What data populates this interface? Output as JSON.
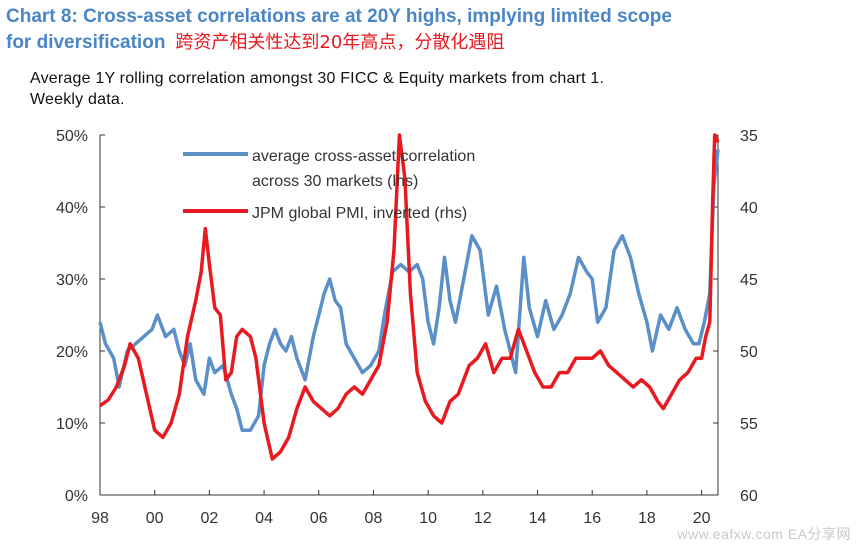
{
  "header": {
    "title_line1": "Chart 8: Cross-asset correlations are at 20Y highs, implying limited scope",
    "title_line2": "for diversification",
    "title_cn": "跨资产相关性达到20年高点，分散化遇阻",
    "subtitle_line1": "Average 1Y rolling correlation amongst 30 FICC & Equity markets from chart 1.",
    "subtitle_line2": "Weekly data."
  },
  "watermark": "www.eafxw.com   EA分享网",
  "chart_data": {
    "type": "line",
    "x_ticks": [
      "98",
      "00",
      "02",
      "04",
      "06",
      "08",
      "10",
      "12",
      "14",
      "16",
      "18",
      "20"
    ],
    "x_range": [
      1998,
      2020.6
    ],
    "y_left": {
      "ticks": [
        "0%",
        "10%",
        "20%",
        "30%",
        "40%",
        "50%"
      ],
      "range": [
        0,
        50
      ]
    },
    "y_right": {
      "ticks": [
        "35",
        "40",
        "45",
        "50",
        "55",
        "60"
      ],
      "range": [
        35,
        60
      ],
      "inverted": true
    },
    "grid": false,
    "legend_position": "top-center",
    "series": [
      {
        "name": "average cross-asset correlation across 30 markets (lhs)",
        "legend_line1": "average cross-asset correlation",
        "legend_line2": "across 30 markets (lhs)",
        "axis": "left",
        "color": "#5b8fc7",
        "points": [
          [
            1998.0,
            24
          ],
          [
            1998.2,
            21
          ],
          [
            1998.5,
            19
          ],
          [
            1998.7,
            15
          ],
          [
            1999.0,
            20
          ],
          [
            1999.3,
            21
          ],
          [
            1999.6,
            22
          ],
          [
            1999.9,
            23
          ],
          [
            2000.1,
            25
          ],
          [
            2000.4,
            22
          ],
          [
            2000.7,
            23
          ],
          [
            2000.9,
            20
          ],
          [
            2001.1,
            18
          ],
          [
            2001.3,
            21
          ],
          [
            2001.5,
            16
          ],
          [
            2001.8,
            14
          ],
          [
            2002.0,
            19
          ],
          [
            2002.2,
            17
          ],
          [
            2002.5,
            18
          ],
          [
            2002.8,
            14
          ],
          [
            2003.0,
            12
          ],
          [
            2003.2,
            9
          ],
          [
            2003.5,
            9
          ],
          [
            2003.8,
            11
          ],
          [
            2004.0,
            18
          ],
          [
            2004.2,
            21
          ],
          [
            2004.4,
            23
          ],
          [
            2004.6,
            21
          ],
          [
            2004.8,
            20
          ],
          [
            2005.0,
            22
          ],
          [
            2005.2,
            19
          ],
          [
            2005.5,
            16
          ],
          [
            2005.8,
            22
          ],
          [
            2006.0,
            25
          ],
          [
            2006.2,
            28
          ],
          [
            2006.4,
            30
          ],
          [
            2006.6,
            27
          ],
          [
            2006.8,
            26
          ],
          [
            2007.0,
            21
          ],
          [
            2007.3,
            19
          ],
          [
            2007.6,
            17
          ],
          [
            2007.9,
            18
          ],
          [
            2008.2,
            20
          ],
          [
            2008.4,
            25
          ],
          [
            2008.7,
            31
          ],
          [
            2009.0,
            32
          ],
          [
            2009.3,
            31
          ],
          [
            2009.6,
            32
          ],
          [
            2009.8,
            30
          ],
          [
            2010.0,
            24
          ],
          [
            2010.2,
            21
          ],
          [
            2010.4,
            26
          ],
          [
            2010.6,
            33
          ],
          [
            2010.8,
            27
          ],
          [
            2011.0,
            24
          ],
          [
            2011.3,
            30
          ],
          [
            2011.6,
            36
          ],
          [
            2011.9,
            34
          ],
          [
            2012.2,
            25
          ],
          [
            2012.5,
            29
          ],
          [
            2012.8,
            23
          ],
          [
            2013.0,
            20
          ],
          [
            2013.2,
            17
          ],
          [
            2013.5,
            33
          ],
          [
            2013.7,
            26
          ],
          [
            2014.0,
            22
          ],
          [
            2014.3,
            27
          ],
          [
            2014.6,
            23
          ],
          [
            2014.9,
            25
          ],
          [
            2015.2,
            28
          ],
          [
            2015.5,
            33
          ],
          [
            2015.8,
            31
          ],
          [
            2016.0,
            30
          ],
          [
            2016.2,
            24
          ],
          [
            2016.5,
            26
          ],
          [
            2016.8,
            34
          ],
          [
            2017.1,
            36
          ],
          [
            2017.4,
            33
          ],
          [
            2017.7,
            28
          ],
          [
            2018.0,
            24
          ],
          [
            2018.2,
            20
          ],
          [
            2018.5,
            25
          ],
          [
            2018.8,
            23
          ],
          [
            2019.1,
            26
          ],
          [
            2019.4,
            23
          ],
          [
            2019.7,
            21
          ],
          [
            2019.9,
            21
          ],
          [
            2020.1,
            24
          ],
          [
            2020.3,
            28
          ],
          [
            2020.45,
            43
          ],
          [
            2020.6,
            48
          ]
        ]
      },
      {
        "name": "JPM global PMI, inverted (rhs)",
        "legend_line1": "JPM global PMI, inverted (rhs)",
        "axis": "right",
        "color": "#e8191f",
        "points": [
          [
            1998.0,
            53.8
          ],
          [
            1998.3,
            53.4
          ],
          [
            1998.6,
            52.5
          ],
          [
            1998.9,
            51.0
          ],
          [
            1999.1,
            49.5
          ],
          [
            1999.4,
            50.5
          ],
          [
            1999.7,
            53.0
          ],
          [
            2000.0,
            55.5
          ],
          [
            2000.3,
            56.0
          ],
          [
            2000.6,
            55.0
          ],
          [
            2000.9,
            53.0
          ],
          [
            2001.2,
            49.0
          ],
          [
            2001.5,
            46.5
          ],
          [
            2001.7,
            44.5
          ],
          [
            2001.85,
            41.5
          ],
          [
            2002.0,
            44.0
          ],
          [
            2002.2,
            47.0
          ],
          [
            2002.4,
            47.5
          ],
          [
            2002.6,
            52.0
          ],
          [
            2002.8,
            51.5
          ],
          [
            2003.0,
            49.0
          ],
          [
            2003.2,
            48.5
          ],
          [
            2003.5,
            49.0
          ],
          [
            2003.7,
            50.5
          ],
          [
            2004.0,
            55.0
          ],
          [
            2004.3,
            57.5
          ],
          [
            2004.6,
            57.0
          ],
          [
            2004.9,
            56.0
          ],
          [
            2005.2,
            54.0
          ],
          [
            2005.5,
            52.5
          ],
          [
            2005.8,
            53.5
          ],
          [
            2006.1,
            54.0
          ],
          [
            2006.4,
            54.5
          ],
          [
            2006.7,
            54.0
          ],
          [
            2007.0,
            53.0
          ],
          [
            2007.3,
            52.5
          ],
          [
            2007.6,
            53.0
          ],
          [
            2007.9,
            52.0
          ],
          [
            2008.2,
            51.0
          ],
          [
            2008.5,
            48.0
          ],
          [
            2008.75,
            43.0
          ],
          [
            2008.95,
            35.0
          ],
          [
            2009.15,
            38.0
          ],
          [
            2009.35,
            46.0
          ],
          [
            2009.6,
            51.5
          ],
          [
            2009.9,
            53.5
          ],
          [
            2010.2,
            54.5
          ],
          [
            2010.5,
            55.0
          ],
          [
            2010.8,
            53.5
          ],
          [
            2011.1,
            53.0
          ],
          [
            2011.5,
            51.0
          ],
          [
            2011.8,
            50.5
          ],
          [
            2012.1,
            49.5
          ],
          [
            2012.4,
            51.5
          ],
          [
            2012.7,
            50.5
          ],
          [
            2013.0,
            50.5
          ],
          [
            2013.3,
            48.5
          ],
          [
            2013.6,
            50.0
          ],
          [
            2013.9,
            51.5
          ],
          [
            2014.2,
            52.5
          ],
          [
            2014.5,
            52.5
          ],
          [
            2014.8,
            51.5
          ],
          [
            2015.1,
            51.5
          ],
          [
            2015.4,
            50.5
          ],
          [
            2015.7,
            50.5
          ],
          [
            2016.0,
            50.5
          ],
          [
            2016.3,
            50.0
          ],
          [
            2016.6,
            51.0
          ],
          [
            2016.9,
            51.5
          ],
          [
            2017.2,
            52.0
          ],
          [
            2017.5,
            52.5
          ],
          [
            2017.8,
            52.0
          ],
          [
            2018.1,
            52.5
          ],
          [
            2018.4,
            53.5
          ],
          [
            2018.6,
            54.0
          ],
          [
            2018.9,
            53.0
          ],
          [
            2019.2,
            52.0
          ],
          [
            2019.5,
            51.5
          ],
          [
            2019.8,
            50.5
          ],
          [
            2020.0,
            50.5
          ],
          [
            2020.15,
            49.0
          ],
          [
            2020.3,
            48.0
          ],
          [
            2020.4,
            40.0
          ],
          [
            2020.48,
            35.0
          ],
          [
            2020.6,
            35.5
          ]
        ]
      }
    ]
  }
}
